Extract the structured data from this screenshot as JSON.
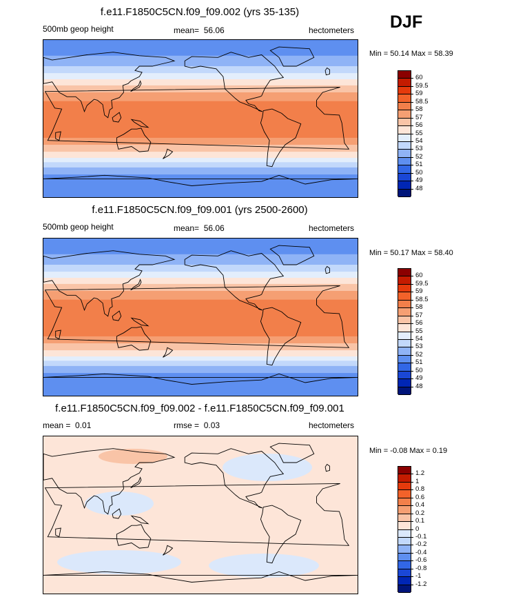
{
  "season_label": "DJF",
  "units": "hectometers",
  "chart_data": [
    {
      "type": "heatmap",
      "title": "f.e11.F1850C5CN.f09_f09.002 (yrs 35-135)",
      "field_label": "500mb geop height",
      "mean_text": "mean=",
      "mean_value": "56.06",
      "min_text": "Min =",
      "min_value": "50.14",
      "max_text": "Max =",
      "max_value": "58.39",
      "units": "hectometers",
      "colorbar_labels": [
        "60",
        "59.5",
        "59",
        "58.5",
        "58",
        "57",
        "56",
        "55",
        "54",
        "53",
        "52",
        "51",
        "50",
        "49",
        "48"
      ],
      "colors": [
        "#8b0000",
        "#c41b00",
        "#e53a0c",
        "#f2622a",
        "#f27f4a",
        "#f59f73",
        "#f9c4a7",
        "#fde5d8",
        "#e3eefc",
        "#c2d8fb",
        "#8fb3f6",
        "#5e8ff0",
        "#3267e6",
        "#1a47d6",
        "#0026b5",
        "#00157a"
      ],
      "band_latitudes_deg_N": [
        90,
        72,
        60,
        52,
        45,
        38,
        30,
        20,
        -22,
        -30,
        -38,
        -45,
        -50,
        -56,
        -64,
        -90
      ],
      "band_values_hm": [
        51.5,
        52.5,
        53.5,
        54.5,
        55.5,
        56.5,
        57.5,
        58.2,
        57.5,
        56.5,
        55.5,
        54.5,
        53.5,
        52.5,
        51.5
      ]
    },
    {
      "type": "heatmap",
      "title": "f.e11.F1850C5CN.f09_f09.001 (yrs 2500-2600)",
      "field_label": "500mb geop height",
      "mean_text": "mean=",
      "mean_value": "56.06",
      "min_text": "Min =",
      "min_value": "50.17",
      "max_text": "Max =",
      "max_value": "58.40",
      "units": "hectometers",
      "colorbar_labels": [
        "60",
        "59.5",
        "59",
        "58.5",
        "58",
        "57",
        "56",
        "55",
        "54",
        "53",
        "52",
        "51",
        "50",
        "49",
        "48"
      ],
      "colors": [
        "#8b0000",
        "#c41b00",
        "#e53a0c",
        "#f2622a",
        "#f27f4a",
        "#f59f73",
        "#f9c4a7",
        "#fde5d8",
        "#e3eefc",
        "#c2d8fb",
        "#8fb3f6",
        "#5e8ff0",
        "#3267e6",
        "#1a47d6",
        "#0026b5",
        "#00157a"
      ],
      "band_latitudes_deg_N": [
        90,
        72,
        60,
        52,
        45,
        38,
        30,
        20,
        -22,
        -30,
        -38,
        -45,
        -50,
        -56,
        -64,
        -90
      ],
      "band_values_hm": [
        51.5,
        52.5,
        53.5,
        54.5,
        55.5,
        56.5,
        57.5,
        58.2,
        57.5,
        56.5,
        55.5,
        54.5,
        53.5,
        52.5,
        51.5
      ]
    },
    {
      "type": "heatmap",
      "title": "f.e11.F1850C5CN.f09_f09.002 - f.e11.F1850C5CN.f09_f09.001",
      "field_label": "",
      "mean_text": "mean =",
      "mean_value": "0.01",
      "rmse_text": "rmse =",
      "rmse_value": "0.03",
      "min_text": "Min =",
      "min_value": "-0.08",
      "max_text": "Max =",
      "max_value": "0.19",
      "units": "hectometers",
      "colorbar_labels": [
        "1.2",
        "1",
        "0.8",
        "0.6",
        "0.4",
        "0.2",
        "0.1",
        "0",
        "-0.1",
        "-0.2",
        "-0.4",
        "-0.6",
        "-0.8",
        "-1",
        "-1.2"
      ],
      "colors": [
        "#8b0000",
        "#c41b00",
        "#e53a0c",
        "#f2622a",
        "#f27f4a",
        "#f59f73",
        "#f9c4a7",
        "#fde5d8",
        "#dbe8fb",
        "#c2d8fb",
        "#8fb3f6",
        "#5e8ff0",
        "#3267e6",
        "#1a47d6",
        "#0026b5",
        "#00157a"
      ],
      "base_value_hm": 0.05,
      "patches": [
        {
          "region": "north-pacific",
          "value_hm": 0.15
        },
        {
          "region": "west-pacific",
          "value_hm": -0.05
        },
        {
          "region": "north-atlantic",
          "value_hm": -0.05
        },
        {
          "region": "southern-ocean-pacific",
          "value_hm": -0.05
        },
        {
          "region": "southern-ocean-indian",
          "value_hm": -0.05
        }
      ]
    }
  ]
}
